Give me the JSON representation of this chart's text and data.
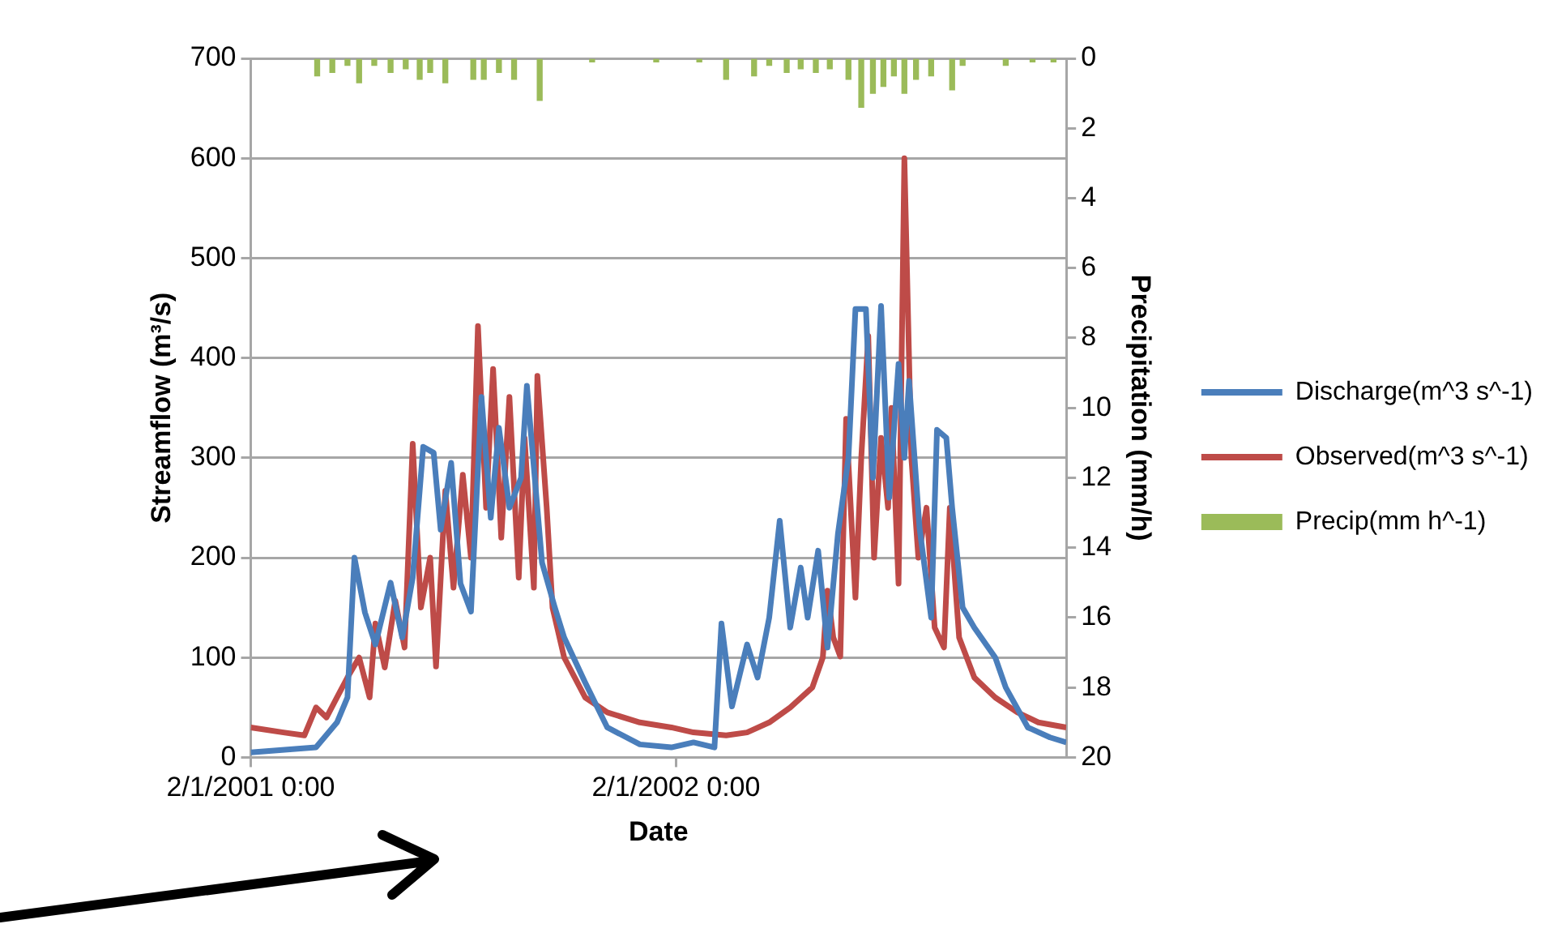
{
  "chart_data": {
    "type": "line",
    "xlabel": "Date",
    "ylabel": "Streamflow (m³/s)",
    "y2label": "Precipitation (mm/h)",
    "xlim": [
      "2001-02-01",
      "2003-01-02"
    ],
    "xticks": [
      {
        "value": "2001-02-01",
        "label": "2/1/2001 0:00"
      },
      {
        "value": "2002-02-01",
        "label": "2/1/2002 0:00"
      }
    ],
    "ylim": [
      0,
      700
    ],
    "yticks": [
      0,
      100,
      200,
      300,
      400,
      500,
      600,
      700
    ],
    "y2lim": [
      20,
      0
    ],
    "y2ticks": [
      0,
      2,
      4,
      6,
      8,
      10,
      12,
      14,
      16,
      18,
      20
    ],
    "grid": "y",
    "legend": "right",
    "marker": "none",
    "line_style": "solid",
    "series": [
      {
        "name": "Discharge(m^3 s^-1)",
        "type": "line",
        "color": "#4a7ebb",
        "x": [
          "2001-02-01",
          "2001-03-29",
          "2001-04-16",
          "2001-04-25",
          "2001-05-01",
          "2001-05-10",
          "2001-05-19",
          "2001-06-01",
          "2001-06-11",
          "2001-06-20",
          "2001-06-29",
          "2001-07-08",
          "2001-07-14",
          "2001-07-23",
          "2001-07-31",
          "2001-08-09",
          "2001-08-18",
          "2001-08-26",
          "2001-09-02",
          "2001-09-11",
          "2001-09-21",
          "2001-09-26",
          "2001-10-09",
          "2001-10-20",
          "2001-10-28",
          "2001-11-15",
          "2001-12-04",
          "2002-01-01",
          "2002-01-28",
          "2002-02-16",
          "2002-03-06",
          "2002-03-12",
          "2002-03-21",
          "2002-04-03",
          "2002-04-12",
          "2002-04-22",
          "2002-05-01",
          "2002-05-10",
          "2002-05-19",
          "2002-05-25",
          "2002-06-03",
          "2002-06-11",
          "2002-06-20",
          "2002-06-29",
          "2002-07-05",
          "2002-07-14",
          "2002-07-20",
          "2002-07-27",
          "2002-08-03",
          "2002-08-11",
          "2002-08-16",
          "2002-08-20",
          "2002-08-29",
          "2002-09-08",
          "2002-09-13",
          "2002-09-21",
          "2002-09-26",
          "2002-10-05",
          "2002-10-15",
          "2002-11-02",
          "2002-11-11",
          "2002-11-30",
          "2002-12-19",
          "2003-01-02"
        ],
        "values": [
          5,
          10,
          35,
          60,
          200,
          145,
          113,
          175,
          120,
          180,
          311,
          305,
          228,
          295,
          174,
          146,
          361,
          240,
          330,
          250,
          280,
          372,
          195,
          150,
          120,
          75,
          30,
          13,
          10,
          15,
          10,
          134,
          51,
          113,
          80,
          140,
          237,
          130,
          190,
          140,
          207,
          110,
          224,
          300,
          449,
          449,
          280,
          452,
          260,
          394,
          300,
          377,
          230,
          140,
          328,
          320,
          250,
          150,
          130,
          100,
          70,
          30,
          20,
          15
        ]
      },
      {
        "name": "Observed(m^3 s^-1)",
        "type": "line",
        "color": "#be4b48",
        "x": [
          "2001-02-01",
          "2001-03-01",
          "2001-03-19",
          "2001-03-29",
          "2001-04-07",
          "2001-04-16",
          "2001-04-25",
          "2001-05-05",
          "2001-05-14",
          "2001-05-19",
          "2001-05-27",
          "2001-06-05",
          "2001-06-13",
          "2001-06-20",
          "2001-06-27",
          "2001-07-05",
          "2001-07-10",
          "2001-07-18",
          "2001-07-25",
          "2001-08-02",
          "2001-08-09",
          "2001-08-15",
          "2001-08-22",
          "2001-08-28",
          "2001-09-04",
          "2001-09-11",
          "2001-09-19",
          "2001-09-24",
          "2001-10-02",
          "2001-10-05",
          "2001-10-13",
          "2001-10-18",
          "2001-10-28",
          "2001-11-15",
          "2001-12-04",
          "2002-01-01",
          "2002-01-28",
          "2002-02-16",
          "2002-03-16",
          "2002-04-03",
          "2002-04-22",
          "2002-05-10",
          "2002-05-29",
          "2002-06-07",
          "2002-06-11",
          "2002-06-16",
          "2002-06-22",
          "2002-06-27",
          "2002-07-05",
          "2002-07-10",
          "2002-07-16",
          "2002-07-21",
          "2002-07-27",
          "2002-08-02",
          "2002-08-05",
          "2002-08-11",
          "2002-08-16",
          "2002-08-22",
          "2002-08-28",
          "2002-09-04",
          "2002-09-11",
          "2002-09-19",
          "2002-09-24",
          "2002-10-02",
          "2002-10-15",
          "2002-11-02",
          "2002-11-21",
          "2002-12-09",
          "2003-01-02"
        ],
        "values": [
          30,
          25,
          22,
          50,
          40,
          60,
          80,
          100,
          60,
          134,
          90,
          157,
          110,
          314,
          150,
          200,
          91,
          267,
          170,
          283,
          200,
          432,
          250,
          389,
          220,
          361,
          180,
          320,
          170,
          382,
          250,
          150,
          100,
          60,
          45,
          35,
          30,
          25,
          22,
          25,
          35,
          50,
          70,
          100,
          167,
          120,
          101,
          339,
          160,
          300,
          422,
          200,
          320,
          250,
          350,
          174,
          600,
          300,
          200,
          250,
          130,
          110,
          250,
          120,
          80,
          60,
          45,
          35,
          30
        ]
      },
      {
        "name": "Precip(mm h^-1)",
        "type": "bar",
        "axis": "y2",
        "color": "#9bbb59",
        "x": [
          "2001-03-30",
          "2001-04-12",
          "2001-04-25",
          "2001-05-05",
          "2001-05-18",
          "2001-06-01",
          "2001-06-14",
          "2001-06-26",
          "2001-07-05",
          "2001-07-18",
          "2001-08-11",
          "2001-08-20",
          "2001-09-02",
          "2001-09-15",
          "2001-10-07",
          "2001-11-21",
          "2002-01-15",
          "2002-02-21",
          "2002-03-16",
          "2002-04-09",
          "2002-04-22",
          "2002-05-07",
          "2002-05-19",
          "2002-06-01",
          "2002-06-13",
          "2002-06-29",
          "2002-07-10",
          "2002-07-20",
          "2002-07-29",
          "2002-08-07",
          "2002-08-16",
          "2002-08-26",
          "2002-09-08",
          "2002-09-26",
          "2002-10-05",
          "2002-11-11",
          "2002-12-04",
          "2002-12-22"
        ],
        "values": [
          0.5,
          0.4,
          0.2,
          0.7,
          0.2,
          0.4,
          0.3,
          0.6,
          0.4,
          0.7,
          0.6,
          0.6,
          0.4,
          0.6,
          1.2,
          0.1,
          0.1,
          0.1,
          0.6,
          0.5,
          0.2,
          0.4,
          0.3,
          0.4,
          0.3,
          0.6,
          1.4,
          1.0,
          0.8,
          0.5,
          1.0,
          0.6,
          0.5,
          0.9,
          0.2,
          0.2,
          0.1,
          0.1
        ]
      }
    ]
  }
}
